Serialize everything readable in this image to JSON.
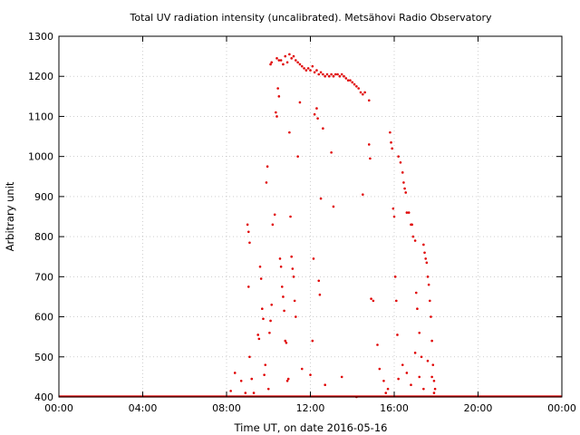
{
  "chart_data": {
    "type": "scatter",
    "title": "Total UV radiation intensity (uncalibrated). Metsähovi Radio Observatory",
    "xlabel": "Time UT, on date 2016-05-16",
    "ylabel": "Arbitrary unit",
    "xlim": [
      0,
      24
    ],
    "ylim": [
      400,
      1300
    ],
    "xticks": [
      0,
      4,
      8,
      12,
      16,
      20,
      24
    ],
    "xtick_labels": [
      "00:00",
      "04:00",
      "08:00",
      "12:00",
      "16:00",
      "20:00",
      "00:00"
    ],
    "yticks": [
      400,
      500,
      600,
      700,
      800,
      900,
      1000,
      1100,
      1200,
      1300
    ],
    "ytick_labels": [
      "400",
      "500",
      "600",
      "700",
      "800",
      "900",
      "1000",
      "1100",
      "1200",
      "1300"
    ],
    "grid": true,
    "legend": "none",
    "series_color": "#e00000",
    "baseline": {
      "x_start": 0,
      "x_end": 24,
      "y": 400
    },
    "points": [
      [
        8.2,
        415
      ],
      [
        8.4,
        460
      ],
      [
        8.7,
        440
      ],
      [
        8.9,
        410
      ],
      [
        9.0,
        830
      ],
      [
        9.05,
        812
      ],
      [
        9.1,
        785
      ],
      [
        9.05,
        675
      ],
      [
        9.1,
        500
      ],
      [
        9.2,
        445
      ],
      [
        9.3,
        410
      ],
      [
        9.5,
        555
      ],
      [
        9.55,
        545
      ],
      [
        9.6,
        725
      ],
      [
        9.65,
        695
      ],
      [
        9.7,
        620
      ],
      [
        9.75,
        595
      ],
      [
        9.8,
        455
      ],
      [
        9.85,
        480
      ],
      [
        9.9,
        935
      ],
      [
        9.95,
        975
      ],
      [
        10.0,
        420
      ],
      [
        10.05,
        560
      ],
      [
        10.1,
        590
      ],
      [
        10.15,
        630
      ],
      [
        10.2,
        830
      ],
      [
        10.3,
        855
      ],
      [
        10.35,
        1110
      ],
      [
        10.4,
        1100
      ],
      [
        10.45,
        1170
      ],
      [
        10.5,
        1150
      ],
      [
        10.55,
        745
      ],
      [
        10.6,
        725
      ],
      [
        10.65,
        675
      ],
      [
        10.7,
        650
      ],
      [
        10.75,
        615
      ],
      [
        10.8,
        540
      ],
      [
        10.85,
        535
      ],
      [
        10.9,
        440
      ],
      [
        10.95,
        445
      ],
      [
        11.0,
        1060
      ],
      [
        11.05,
        850
      ],
      [
        11.1,
        750
      ],
      [
        11.15,
        720
      ],
      [
        11.2,
        700
      ],
      [
        11.25,
        640
      ],
      [
        11.3,
        600
      ],
      [
        11.4,
        1000
      ],
      [
        11.5,
        1135
      ],
      [
        11.6,
        470
      ],
      [
        12.0,
        455
      ],
      [
        12.1,
        540
      ],
      [
        12.15,
        745
      ],
      [
        12.2,
        1105
      ],
      [
        12.3,
        1120
      ],
      [
        12.35,
        1095
      ],
      [
        12.4,
        690
      ],
      [
        12.45,
        655
      ],
      [
        12.5,
        895
      ],
      [
        12.6,
        1070
      ],
      [
        12.7,
        430
      ],
      [
        13.0,
        1010
      ],
      [
        13.1,
        875
      ],
      [
        13.5,
        450
      ],
      [
        14.2,
        400
      ],
      [
        14.5,
        905
      ],
      [
        14.8,
        1030
      ],
      [
        14.85,
        995
      ],
      [
        14.9,
        645
      ],
      [
        15.0,
        640
      ],
      [
        15.2,
        530
      ],
      [
        15.3,
        470
      ],
      [
        15.8,
        1060
      ],
      [
        15.85,
        1035
      ],
      [
        15.9,
        1020
      ],
      [
        15.95,
        870
      ],
      [
        16.0,
        850
      ],
      [
        16.05,
        700
      ],
      [
        16.1,
        640
      ],
      [
        16.15,
        555
      ],
      [
        16.2,
        1000
      ],
      [
        16.3,
        985
      ],
      [
        16.4,
        960
      ],
      [
        16.45,
        935
      ],
      [
        16.5,
        920
      ],
      [
        16.55,
        910
      ],
      [
        16.6,
        860
      ],
      [
        16.7,
        860
      ],
      [
        16.8,
        830
      ],
      [
        16.85,
        830
      ],
      [
        16.9,
        800
      ],
      [
        17.0,
        790
      ],
      [
        17.05,
        660
      ],
      [
        17.1,
        620
      ],
      [
        17.2,
        560
      ],
      [
        17.3,
        500
      ],
      [
        17.4,
        780
      ],
      [
        17.45,
        760
      ],
      [
        17.5,
        745
      ],
      [
        17.55,
        735
      ],
      [
        17.6,
        700
      ],
      [
        17.65,
        680
      ],
      [
        17.7,
        640
      ],
      [
        17.75,
        600
      ],
      [
        17.8,
        540
      ],
      [
        17.85,
        480
      ],
      [
        17.9,
        440
      ],
      [
        17.95,
        420
      ],
      [
        10.1,
        1230
      ],
      [
        10.15,
        1235
      ],
      [
        10.4,
        1245
      ],
      [
        10.5,
        1240
      ],
      [
        10.6,
        1240
      ],
      [
        10.7,
        1230
      ],
      [
        10.8,
        1250
      ],
      [
        10.9,
        1235
      ],
      [
        11.0,
        1255
      ],
      [
        11.1,
        1245
      ],
      [
        11.2,
        1250
      ],
      [
        11.3,
        1240
      ],
      [
        11.4,
        1235
      ],
      [
        11.5,
        1230
      ],
      [
        11.6,
        1225
      ],
      [
        11.7,
        1220
      ],
      [
        11.8,
        1215
      ],
      [
        11.9,
        1220
      ],
      [
        12.0,
        1215
      ],
      [
        12.1,
        1225
      ],
      [
        12.2,
        1210
      ],
      [
        12.3,
        1215
      ],
      [
        12.4,
        1205
      ],
      [
        12.5,
        1210
      ],
      [
        12.6,
        1205
      ],
      [
        12.7,
        1200
      ],
      [
        12.8,
        1205
      ],
      [
        12.9,
        1200
      ],
      [
        13.0,
        1205
      ],
      [
        13.1,
        1200
      ],
      [
        13.2,
        1205
      ],
      [
        13.3,
        1205
      ],
      [
        13.4,
        1200
      ],
      [
        13.5,
        1205
      ],
      [
        13.6,
        1200
      ],
      [
        13.7,
        1195
      ],
      [
        13.8,
        1190
      ],
      [
        13.9,
        1190
      ],
      [
        14.0,
        1185
      ],
      [
        14.1,
        1180
      ],
      [
        14.2,
        1175
      ],
      [
        14.3,
        1170
      ],
      [
        14.4,
        1160
      ],
      [
        14.5,
        1155
      ],
      [
        14.6,
        1160
      ],
      [
        14.8,
        1140
      ],
      [
        15.5,
        440
      ],
      [
        15.6,
        410
      ],
      [
        15.7,
        420
      ],
      [
        16.2,
        445
      ],
      [
        16.4,
        480
      ],
      [
        16.6,
        460
      ],
      [
        16.8,
        430
      ],
      [
        17.0,
        510
      ],
      [
        17.2,
        450
      ],
      [
        17.4,
        420
      ],
      [
        17.6,
        490
      ],
      [
        17.8,
        450
      ],
      [
        17.9,
        410
      ]
    ]
  }
}
